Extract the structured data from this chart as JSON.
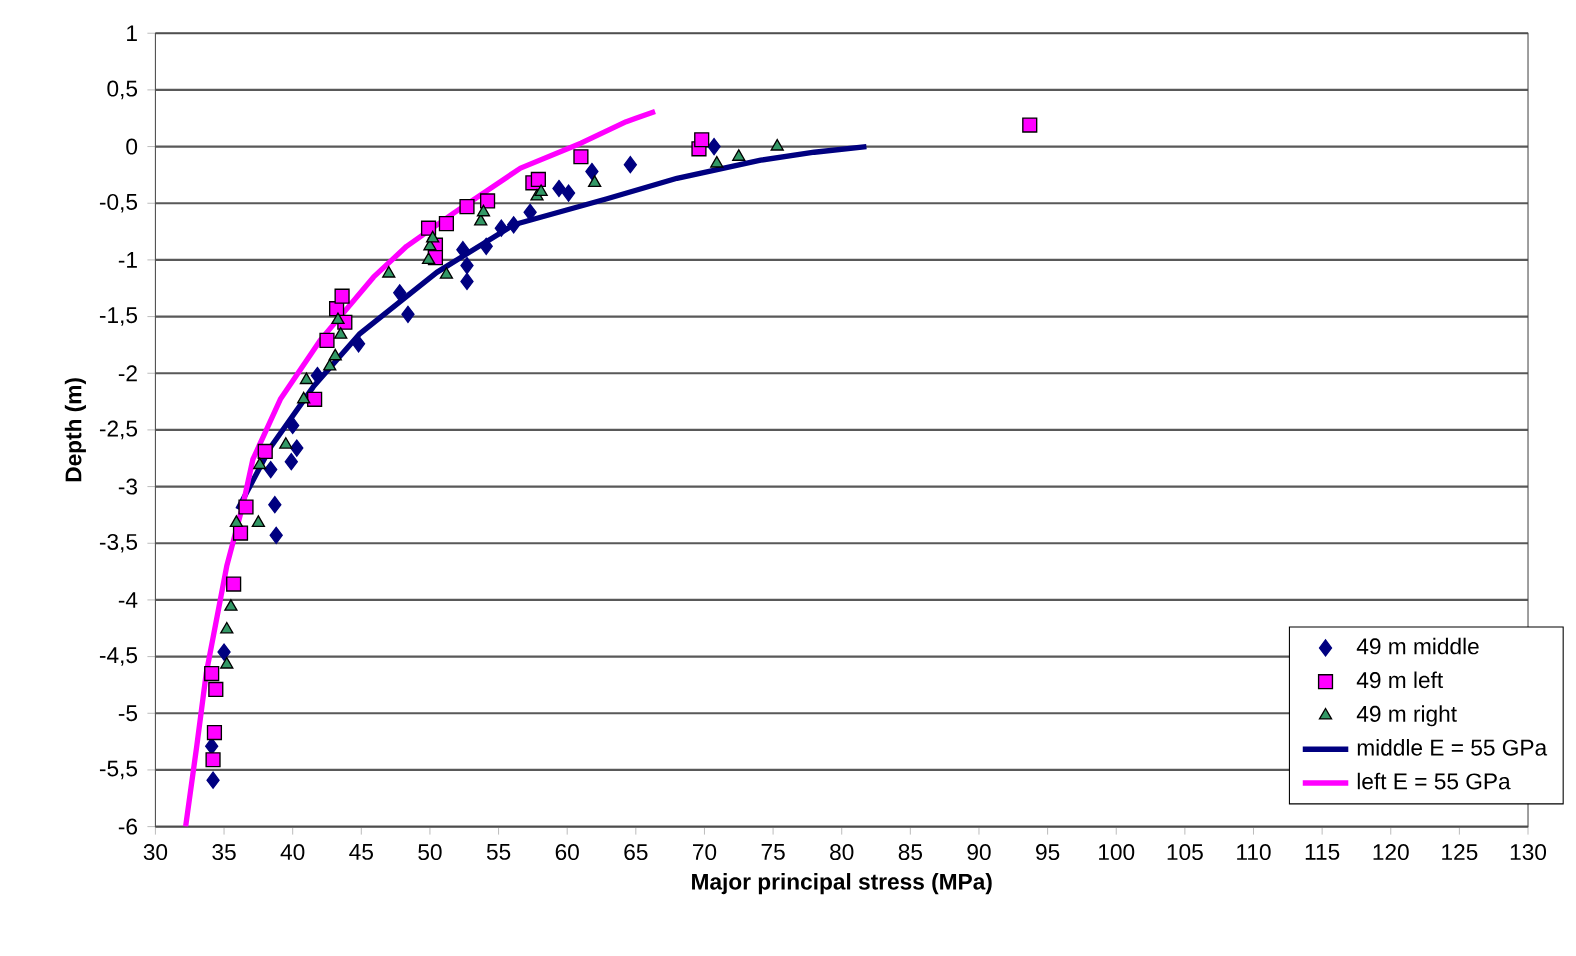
{
  "chart_data": {
    "type": "scatter",
    "xlabel": "Major principal stress (MPa)",
    "ylabel": "Depth (m)",
    "xlim": [
      30,
      130
    ],
    "xticks": [
      30,
      35,
      40,
      45,
      50,
      55,
      60,
      65,
      70,
      75,
      80,
      85,
      90,
      95,
      100,
      105,
      110,
      115,
      120,
      125,
      130
    ],
    "ylim": [
      -6,
      1
    ],
    "yticks": [
      -6,
      {
        "value": -5.5,
        "label": "-5,5"
      },
      -5,
      {
        "value": -4.5,
        "label": "-4,5"
      },
      -4,
      {
        "value": -3.5,
        "label": "-3,5"
      },
      -3,
      {
        "value": -2.5,
        "label": "-2,5"
      },
      -2,
      {
        "value": -1.5,
        "label": "-1,5"
      },
      -1,
      {
        "value": -0.5,
        "label": "-0,5"
      },
      0,
      {
        "value": 0.5,
        "label": "0,5"
      },
      1
    ],
    "grid": "y",
    "legend": "bottom right",
    "series": [
      {
        "name": "49 m middle",
        "marker": "diamond",
        "color": "#000080",
        "x": [
          34.2,
          34.1,
          35.0,
          38.4,
          38.7,
          38.8,
          39.9,
          40.3,
          40.0,
          41.8,
          44.8,
          47.8,
          48.4,
          52.4,
          52.7,
          52.7,
          54.1,
          55.2,
          56.1,
          57.3,
          59.4,
          60.1,
          61.8,
          64.6,
          70.7
        ],
        "values": [
          -5.59,
          -5.29,
          -4.46,
          -2.85,
          -3.16,
          -3.43,
          -2.78,
          -2.66,
          -2.46,
          -2.02,
          -1.74,
          -1.29,
          -1.48,
          -0.91,
          -1.05,
          -1.19,
          -0.88,
          -0.72,
          -0.69,
          -0.58,
          -0.37,
          -0.41,
          -0.22,
          -0.16,
          0.0
        ]
      },
      {
        "name": "49 m left",
        "marker": "square",
        "color": "#ff00ff",
        "x": [
          34.2,
          34.3,
          34.4,
          34.1,
          35.7,
          36.2,
          36.6,
          38.0,
          41.6,
          42.5,
          43.2,
          43.6,
          43.8,
          49.9,
          50.4,
          50.4,
          51.2,
          52.7,
          54.2,
          57.5,
          57.9,
          61.0,
          69.6,
          69.8,
          93.7
        ],
        "values": [
          -5.41,
          -5.17,
          -4.79,
          -4.65,
          -3.86,
          -3.41,
          -3.18,
          -2.69,
          -2.23,
          -1.71,
          -1.43,
          -1.32,
          -1.55,
          -0.72,
          -0.87,
          -0.98,
          -0.68,
          -0.53,
          -0.48,
          -0.32,
          -0.29,
          -0.09,
          -0.02,
          0.06,
          0.19
        ]
      },
      {
        "name": "49 m right",
        "marker": "triangle",
        "color": "#339966",
        "x": [
          35.2,
          35.2,
          35.5,
          35.9,
          37.5,
          37.6,
          39.5,
          40.8,
          41.0,
          42.7,
          43.1,
          43.3,
          43.5,
          47.0,
          49.9,
          50.0,
          50.2,
          51.2,
          53.7,
          53.9,
          57.8,
          58.1,
          62.0,
          70.9,
          72.5,
          75.3
        ],
        "values": [
          -4.57,
          -4.26,
          -4.06,
          -3.32,
          -3.32,
          -2.81,
          -2.63,
          -2.23,
          -2.06,
          -1.94,
          -1.85,
          -1.53,
          -1.66,
          -1.12,
          -1.0,
          -0.88,
          -0.81,
          -1.13,
          -0.66,
          -0.58,
          -0.44,
          -0.4,
          -0.32,
          -0.15,
          -0.09,
          0.0
        ]
      },
      {
        "name": "middle E = 55 GPa",
        "type": "line",
        "marker": "none",
        "line_style": "solid",
        "color": "#000080",
        "x": [
          36.0,
          38.4,
          41.5,
          44.9,
          50.5,
          56.1,
          62.9,
          68.0,
          74.1,
          78.0,
          81.8
        ],
        "values": [
          -3.2,
          -2.65,
          -2.12,
          -1.65,
          -1.11,
          -0.69,
          -0.46,
          -0.28,
          -0.12,
          -0.05,
          0.0
        ]
      },
      {
        "name": "left E = 55 GPa",
        "type": "line",
        "marker": "none",
        "line_style": "solid",
        "color": "#ff00ff",
        "x": [
          32.2,
          33.0,
          33.7,
          35.2,
          36.4,
          37.1,
          39.1,
          42.0,
          45.9,
          48.3,
          51.7,
          56.6,
          61.0,
          64.3,
          65.0,
          66.4
        ],
        "values": [
          -6.0,
          -5.3,
          -4.65,
          -3.7,
          -3.15,
          -2.76,
          -2.23,
          -1.71,
          -1.15,
          -0.88,
          -0.59,
          -0.19,
          0.03,
          0.22,
          0.25,
          0.31
        ]
      }
    ]
  }
}
